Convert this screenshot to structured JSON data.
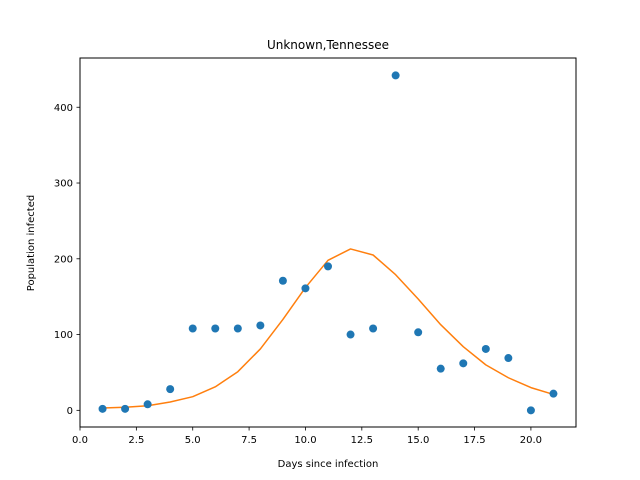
{
  "chart_data": {
    "type": "scatter",
    "title": "Unknown,Tennessee",
    "xlabel": "Days since infection",
    "ylabel": "Population infected",
    "xlim": [
      0.0,
      22.0
    ],
    "ylim": [
      -22,
      465
    ],
    "xticks": [
      0.0,
      2.5,
      5.0,
      7.5,
      10.0,
      12.5,
      15.0,
      17.5,
      20.0
    ],
    "xtick_labels": [
      "0.0",
      "2.5",
      "5.0",
      "7.5",
      "10.0",
      "12.5",
      "15.0",
      "17.5",
      "20.0"
    ],
    "yticks": [
      0,
      100,
      200,
      300,
      400
    ],
    "ytick_labels": [
      "0",
      "100",
      "200",
      "300",
      "400"
    ],
    "grid": false,
    "series": [
      {
        "type": "scatter",
        "color": "#1f77b4",
        "x": [
          1,
          2,
          3,
          4,
          5,
          6,
          7,
          8,
          9,
          10,
          11,
          12,
          13,
          14,
          15,
          16,
          17,
          18,
          19,
          20,
          21
        ],
        "y": [
          2,
          2,
          8,
          28,
          108,
          108,
          108,
          112,
          171,
          161,
          190,
          100,
          108,
          442,
          103,
          55,
          62,
          81,
          69,
          0,
          22
        ]
      },
      {
        "type": "line",
        "color": "#ff7f0e",
        "x": [
          1,
          2,
          3,
          4,
          5,
          6,
          7,
          8,
          9,
          10,
          11,
          12,
          13,
          14,
          15,
          16,
          17,
          18,
          19,
          20,
          21
        ],
        "y": [
          3,
          4,
          6,
          11,
          18,
          31,
          51,
          81,
          120,
          162,
          198,
          213,
          205,
          179,
          147,
          113,
          84,
          60,
          43,
          30,
          21
        ]
      }
    ]
  }
}
